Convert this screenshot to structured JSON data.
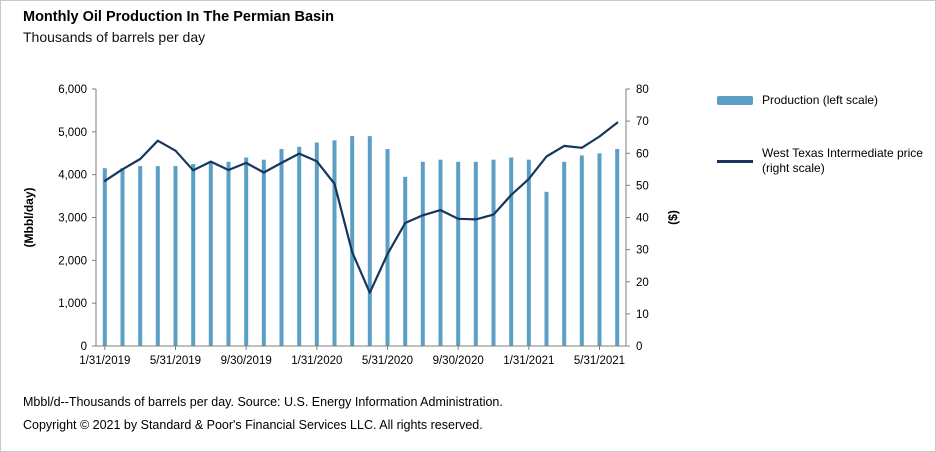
{
  "title": "Monthly Oil Production In The Permian Basin",
  "subtitle": "Thousands of barrels per day",
  "legend": {
    "production": "Production (left scale)",
    "wti": "West Texas Intermediate price (right scale)"
  },
  "footnotes": {
    "source": "Mbbl/d--Thousands of barrels per day. Source: U.S. Energy Information Administration.",
    "copyright": "Copyright © 2021 by Standard & Poor's Financial Services LLC. All rights reserved."
  },
  "colors": {
    "production_bar": "#5B9FC6",
    "wti_line": "#17365D"
  },
  "chart_data": {
    "type": "bar",
    "combo": "bar+line",
    "title": "Monthly Oil Production In The Permian Basin",
    "subtitle": "Thousands of barrels per day",
    "x": [
      "1/31/2019",
      "2/28/2019",
      "3/31/2019",
      "4/30/2019",
      "5/31/2019",
      "6/30/2019",
      "7/31/2019",
      "8/31/2019",
      "9/30/2019",
      "10/31/2019",
      "11/30/2019",
      "12/31/2019",
      "1/31/2020",
      "2/29/2020",
      "3/31/2020",
      "4/30/2020",
      "5/31/2020",
      "6/30/2020",
      "7/31/2020",
      "8/31/2020",
      "9/30/2020",
      "10/31/2020",
      "11/30/2020",
      "12/31/2020",
      "1/31/2021",
      "2/28/2021",
      "3/31/2021",
      "4/30/2021",
      "5/31/2021",
      "6/30/2021"
    ],
    "x_tick_labels": [
      "1/31/2019",
      "5/31/2019",
      "9/30/2019",
      "1/31/2020",
      "5/31/2020",
      "9/30/2020",
      "1/31/2021",
      "5/31/2021"
    ],
    "x_tick_indices": [
      0,
      4,
      8,
      12,
      16,
      20,
      24,
      28
    ],
    "series": [
      {
        "name": "Production (left scale)",
        "type": "bar",
        "axis": "left",
        "color": "#5B9FC6",
        "values": [
          4150,
          4150,
          4200,
          4200,
          4200,
          4250,
          4300,
          4300,
          4400,
          4350,
          4600,
          4650,
          4750,
          4800,
          4900,
          4900,
          4600,
          3950,
          4300,
          4350,
          4300,
          4300,
          4350,
          4400,
          4350,
          3600,
          4300,
          4450,
          4500,
          4600
        ]
      },
      {
        "name": "West Texas Intermediate price (right scale)",
        "type": "line",
        "axis": "right",
        "color": "#17365D",
        "values": [
          51.4,
          55.0,
          58.2,
          63.9,
          60.8,
          54.7,
          57.4,
          54.8,
          57.0,
          54.0,
          57.0,
          59.9,
          57.5,
          50.5,
          29.2,
          16.6,
          28.6,
          38.3,
          40.7,
          42.3,
          39.6,
          39.4,
          40.9,
          47.0,
          52.0,
          59.0,
          62.3,
          61.7,
          65.2,
          69.5
        ]
      }
    ],
    "left_axis": {
      "label": "(Mbbl/day)",
      "min": 0,
      "max": 6000,
      "step": 1000,
      "tick_labels": [
        "0",
        "1,000",
        "2,000",
        "3,000",
        "4,000",
        "5,000",
        "6,000"
      ]
    },
    "right_axis": {
      "label": "($)",
      "min": 0,
      "max": 80,
      "step": 10,
      "tick_labels": [
        "0",
        "10",
        "20",
        "30",
        "40",
        "50",
        "60",
        "70",
        "80"
      ]
    },
    "grid": false,
    "legend_position": "right"
  }
}
